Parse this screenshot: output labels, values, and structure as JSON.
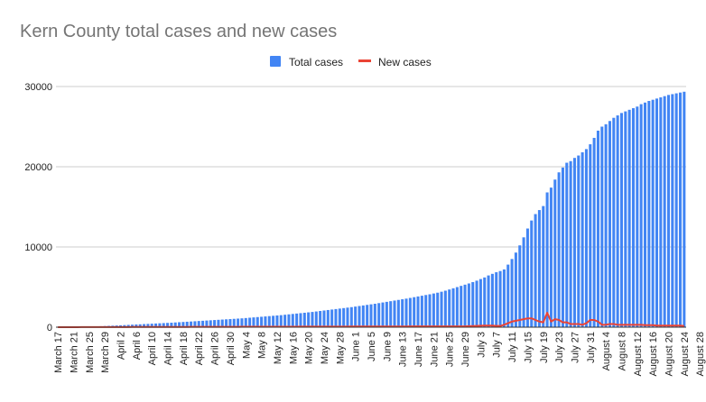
{
  "chart_data": {
    "type": "bar",
    "title": "Kern County total cases and new cases",
    "xlabel": "",
    "ylabel": "",
    "ylim": [
      0,
      30000
    ],
    "yticks": [
      "0",
      "10000",
      "20000",
      "30000"
    ],
    "grid": true,
    "legend_position": "top",
    "x_tick_labels": [
      "March 17",
      "March 21",
      "March 25",
      "March 29",
      "April 2",
      "April 6",
      "April 10",
      "April 14",
      "April 18",
      "April 22",
      "April 26",
      "April 30",
      "May 4",
      "May 8",
      "May 12",
      "May 16",
      "May 20",
      "May 24",
      "May 28",
      "June 1",
      "June 5",
      "June 9",
      "June 13",
      "June 17",
      "June 21",
      "June 25",
      "June 29",
      "July 3",
      "July 7",
      "July 11",
      "July 15",
      "July 19",
      "July 23",
      "July 27",
      "July 31",
      "August 4",
      "August 8",
      "August 12",
      "August 16",
      "August 20",
      "August 24",
      "August 28"
    ],
    "x_start": "March 17",
    "x_end": "August 31",
    "series": [
      {
        "name": "Total cases",
        "kind": "bar",
        "color": "#4285f4",
        "values": [
          10,
          15,
          20,
          26,
          33,
          40,
          50,
          62,
          75,
          88,
          105,
          124,
          145,
          168,
          190,
          212,
          235,
          260,
          285,
          310,
          335,
          360,
          385,
          410,
          435,
          460,
          485,
          510,
          535,
          560,
          590,
          620,
          650,
          680,
          710,
          740,
          770,
          800,
          830,
          860,
          890,
          920,
          950,
          980,
          1010,
          1040,
          1070,
          1100,
          1140,
          1180,
          1220,
          1260,
          1300,
          1340,
          1380,
          1420,
          1460,
          1500,
          1550,
          1600,
          1650,
          1700,
          1750,
          1800,
          1850,
          1900,
          1960,
          2020,
          2080,
          2140,
          2200,
          2260,
          2320,
          2380,
          2440,
          2500,
          2570,
          2640,
          2710,
          2780,
          2850,
          2920,
          3000,
          3080,
          3160,
          3240,
          3320,
          3400,
          3480,
          3560,
          3650,
          3740,
          3830,
          3920,
          4010,
          4100,
          4200,
          4300,
          4420,
          4550,
          4700,
          4850,
          5000,
          5150,
          5300,
          5450,
          5620,
          5800,
          6000,
          6200,
          6450,
          6650,
          6850,
          7000,
          7200,
          7800,
          8500,
          9300,
          10200,
          11200,
          12300,
          13300,
          14100,
          14600,
          15100,
          16800,
          17400,
          18400,
          19300,
          19900,
          20500,
          20700,
          21100,
          21400,
          21800,
          22200,
          22800,
          23600,
          24500,
          25000,
          25300,
          25700,
          26100,
          26400,
          26700,
          26900,
          27100,
          27300,
          27500,
          27800,
          28000,
          28200,
          28350,
          28500,
          28650,
          28800,
          28950,
          29050,
          29150,
          29250,
          29350
        ]
      },
      {
        "name": "New cases",
        "kind": "line",
        "color": "#ea4335",
        "values": [
          3,
          4,
          5,
          6,
          6,
          7,
          8,
          9,
          10,
          11,
          12,
          13,
          14,
          15,
          16,
          17,
          18,
          19,
          20,
          21,
          22,
          23,
          24,
          25,
          26,
          27,
          28,
          29,
          30,
          31,
          32,
          33,
          34,
          35,
          36,
          37,
          38,
          39,
          40,
          41,
          42,
          43,
          44,
          45,
          46,
          47,
          48,
          49,
          50,
          51,
          52,
          53,
          54,
          55,
          56,
          57,
          58,
          59,
          60,
          61,
          62,
          63,
          64,
          65,
          66,
          67,
          68,
          69,
          70,
          71,
          72,
          73,
          74,
          75,
          76,
          77,
          78,
          79,
          80,
          81,
          82,
          83,
          84,
          85,
          86,
          87,
          88,
          89,
          90,
          91,
          92,
          93,
          94,
          95,
          96,
          97,
          98,
          99,
          100,
          100,
          100,
          100,
          100,
          100,
          100,
          120,
          140,
          160,
          180,
          200,
          200,
          200,
          150,
          150,
          300,
          500,
          700,
          800,
          900,
          1000,
          1100,
          1100,
          900,
          700,
          600,
          1800,
          700,
          1000,
          900,
          600,
          600,
          400,
          400,
          400,
          300,
          500,
          900,
          900,
          700,
          300,
          300,
          400,
          400,
          300,
          300,
          300,
          300,
          300,
          300,
          300,
          250,
          250,
          250,
          200,
          200,
          200,
          200,
          200,
          200,
          200,
          150
        ]
      }
    ]
  }
}
